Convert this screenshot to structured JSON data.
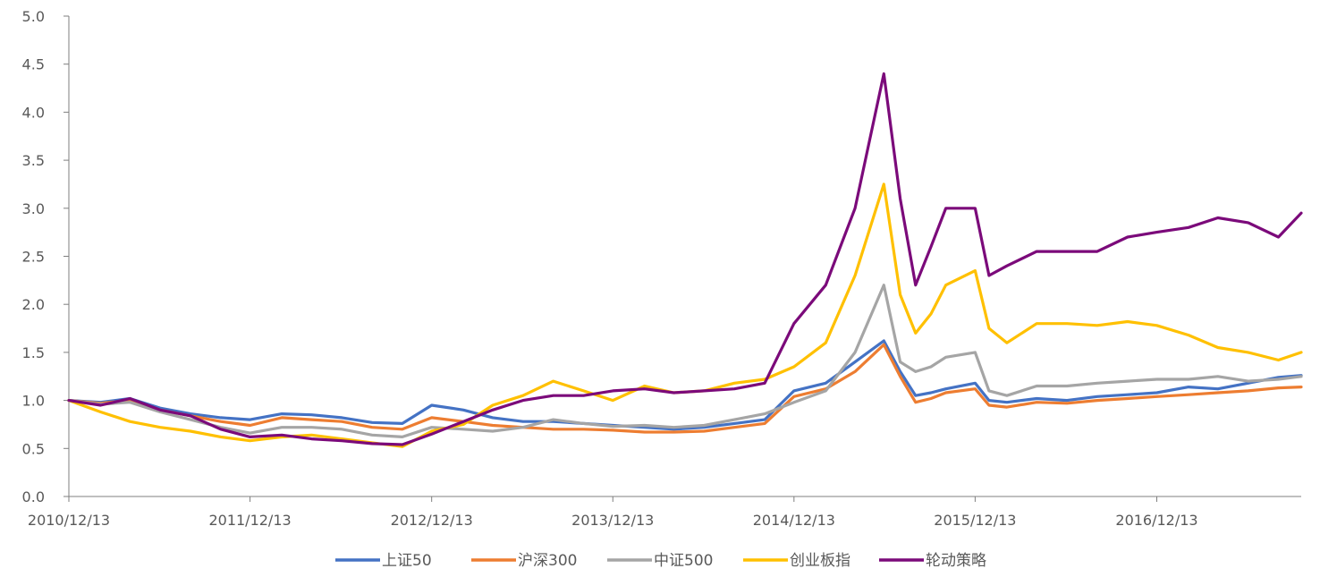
{
  "chart_data": {
    "type": "line",
    "title": "",
    "xlabel": "",
    "ylabel": "",
    "ylim": [
      0,
      5
    ],
    "yticks": [
      "0.0",
      "0.5",
      "1.0",
      "1.5",
      "2.0",
      "2.5",
      "3.0",
      "3.5",
      "4.0",
      "4.5",
      "5.0"
    ],
    "xticks": [
      "2010/12/13",
      "2011/12/13",
      "2012/12/13",
      "2013/12/13",
      "2014/12/13",
      "2015/12/13",
      "2016/12/13"
    ],
    "xlim": [
      "2010/12/13",
      "2017/09/30"
    ],
    "grid": false,
    "legend_position": "bottom",
    "x": [
      "2010/12/13",
      "2011/02/15",
      "2011/04/15",
      "2011/06/15",
      "2011/08/15",
      "2011/10/15",
      "2011/12/13",
      "2012/02/15",
      "2012/04/15",
      "2012/06/15",
      "2012/08/15",
      "2012/10/15",
      "2012/12/13",
      "2013/02/15",
      "2013/04/15",
      "2013/06/15",
      "2013/08/15",
      "2013/10/15",
      "2013/12/13",
      "2014/02/15",
      "2014/04/15",
      "2014/06/15",
      "2014/08/15",
      "2014/10/15",
      "2014/12/13",
      "2015/02/15",
      "2015/04/15",
      "2015/06/12",
      "2015/07/15",
      "2015/08/15",
      "2015/09/15",
      "2015/10/15",
      "2015/12/13",
      "2016/01/10",
      "2016/02/15",
      "2016/04/15",
      "2016/06/15",
      "2016/08/15",
      "2016/10/15",
      "2016/12/13",
      "2017/02/15",
      "2017/04/15",
      "2017/06/15",
      "2017/08/15",
      "2017/09/30"
    ],
    "series": [
      {
        "name": "上证50",
        "color": "#4472C4",
        "values": [
          1.0,
          0.98,
          1.02,
          0.92,
          0.86,
          0.82,
          0.8,
          0.86,
          0.85,
          0.82,
          0.77,
          0.76,
          0.95,
          0.9,
          0.82,
          0.78,
          0.78,
          0.76,
          0.74,
          0.72,
          0.7,
          0.72,
          0.76,
          0.8,
          1.1,
          1.18,
          1.4,
          1.62,
          1.3,
          1.05,
          1.08,
          1.12,
          1.18,
          1.0,
          0.98,
          1.02,
          1.0,
          1.04,
          1.06,
          1.08,
          1.14,
          1.12,
          1.18,
          1.24,
          1.26
        ]
      },
      {
        "name": "沪深300",
        "color": "#ED7D31",
        "values": [
          1.0,
          0.97,
          1.0,
          0.9,
          0.84,
          0.78,
          0.74,
          0.82,
          0.8,
          0.78,
          0.72,
          0.7,
          0.82,
          0.78,
          0.74,
          0.72,
          0.7,
          0.7,
          0.69,
          0.67,
          0.67,
          0.68,
          0.72,
          0.76,
          1.04,
          1.12,
          1.3,
          1.58,
          1.25,
          0.98,
          1.02,
          1.08,
          1.12,
          0.95,
          0.93,
          0.98,
          0.97,
          1.0,
          1.02,
          1.04,
          1.06,
          1.08,
          1.1,
          1.13,
          1.14
        ]
      },
      {
        "name": "中证500",
        "color": "#A5A5A5",
        "values": [
          1.0,
          0.96,
          0.98,
          0.88,
          0.8,
          0.72,
          0.66,
          0.72,
          0.72,
          0.7,
          0.64,
          0.62,
          0.72,
          0.7,
          0.68,
          0.72,
          0.8,
          0.76,
          0.73,
          0.74,
          0.72,
          0.74,
          0.8,
          0.86,
          0.98,
          1.1,
          1.5,
          2.2,
          1.4,
          1.3,
          1.35,
          1.45,
          1.5,
          1.1,
          1.05,
          1.15,
          1.15,
          1.18,
          1.2,
          1.22,
          1.22,
          1.25,
          1.2,
          1.22,
          1.25
        ]
      },
      {
        "name": "创业板指",
        "color": "#FFC000",
        "values": [
          1.0,
          0.88,
          0.78,
          0.72,
          0.68,
          0.62,
          0.58,
          0.62,
          0.64,
          0.6,
          0.56,
          0.52,
          0.68,
          0.75,
          0.95,
          1.05,
          1.2,
          1.1,
          1.0,
          1.15,
          1.08,
          1.1,
          1.18,
          1.22,
          1.35,
          1.6,
          2.3,
          3.25,
          2.1,
          1.7,
          1.9,
          2.2,
          2.35,
          1.75,
          1.6,
          1.8,
          1.8,
          1.78,
          1.82,
          1.78,
          1.68,
          1.55,
          1.5,
          1.42,
          1.5
        ]
      },
      {
        "name": "轮动策略",
        "color": "#7B0A7A",
        "values": [
          1.0,
          0.95,
          1.02,
          0.9,
          0.84,
          0.7,
          0.62,
          0.64,
          0.6,
          0.58,
          0.55,
          0.54,
          0.65,
          0.78,
          0.9,
          1.0,
          1.05,
          1.05,
          1.1,
          1.12,
          1.08,
          1.1,
          1.12,
          1.18,
          1.8,
          2.2,
          3.0,
          4.4,
          3.1,
          2.2,
          2.6,
          3.0,
          3.0,
          2.3,
          2.4,
          2.55,
          2.55,
          2.55,
          2.7,
          2.75,
          2.8,
          2.9,
          2.85,
          2.7,
          2.95
        ]
      }
    ]
  }
}
